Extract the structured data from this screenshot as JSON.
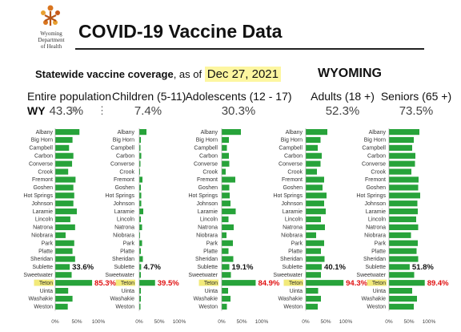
{
  "header": {
    "logo_text": [
      "Wyoming",
      "Department",
      "of Health"
    ],
    "title": "COVID-19 Vaccine Data",
    "coverage_label": "Statewide vaccine coverage",
    "coverage_suffix": ", as of",
    "as_of_date": "Dec 27, 2021",
    "state": "WYOMING"
  },
  "entire": {
    "label": "Entire population",
    "state": "WY",
    "value": "43.3%"
  },
  "groups": [
    {
      "label": "Children (5-11)",
      "value": "7.4%"
    },
    {
      "label": "Adolescents (12 - 17)",
      "value": "30.3%"
    },
    {
      "label": "Adults (18 +)",
      "value": "52.3%"
    },
    {
      "label": "Seniors (65 +)",
      "value": "73.5%"
    }
  ],
  "colors": {
    "bar": "#27a33a",
    "highlight_bar": "#27a33a",
    "label_dark": "#111111",
    "label_red": "#e01010",
    "teton_hl": "#f2ea7a",
    "axis": "#999999"
  },
  "chart_data": [
    {
      "type": "bar",
      "orientation": "horizontal",
      "xlim": [
        0,
        100
      ],
      "xticks": [
        "0%",
        "50%",
        "100%"
      ],
      "categories": [
        "Albany",
        "Big Horn",
        "Campbell",
        "Carbon",
        "Converse",
        "Crook",
        "Fremont",
        "Goshen",
        "Hot Springs",
        "Johnson",
        "Laramie",
        "Lincoln",
        "Natrona",
        "Niobrara",
        "Park",
        "Platte",
        "Sheridan",
        "Sublette",
        "Sweetwater",
        "Teton",
        "Uinta",
        "Washakie",
        "Weston"
      ],
      "values": [
        56,
        40,
        32,
        42,
        39,
        30,
        47,
        42,
        44,
        42,
        50,
        35,
        46,
        24,
        44,
        40,
        46,
        33.6,
        38,
        85.3,
        30,
        40,
        29
      ],
      "labels": [
        {
          "category": "Sublette",
          "text": "33.6%",
          "color": "dark"
        },
        {
          "category": "Teton",
          "text": "85.3%",
          "color": "red"
        }
      ]
    },
    {
      "type": "bar",
      "orientation": "horizontal",
      "xlim": [
        0,
        100
      ],
      "xticks": [
        "0%",
        "50%",
        "100%"
      ],
      "categories": [
        "Albany",
        "Big Horn",
        "Campbell",
        "Carbon",
        "Converse",
        "Crook",
        "Fremont",
        "Goshen",
        "Hot Springs",
        "Johnson",
        "Laramie",
        "Lincoln",
        "Natrona",
        "Niobrara",
        "Park",
        "Platte",
        "Sheridan",
        "Sublette",
        "Sweetwater",
        "Teton",
        "Uinta",
        "Washakie",
        "Weston"
      ],
      "values": [
        18,
        4,
        3,
        5,
        3,
        2,
        8,
        4,
        5,
        5,
        10,
        4,
        7,
        2,
        7,
        4,
        9,
        4.7,
        4,
        39.5,
        4,
        4,
        3
      ],
      "labels": [
        {
          "category": "Sublette",
          "text": "4.7%",
          "color": "dark"
        },
        {
          "category": "Teton",
          "text": "39.5%",
          "color": "red"
        }
      ]
    },
    {
      "type": "bar",
      "orientation": "horizontal",
      "xlim": [
        0,
        100
      ],
      "xticks": [
        "0%",
        "50%",
        "100%"
      ],
      "categories": [
        "Albany",
        "Big Horn",
        "Campbell",
        "Carbon",
        "Converse",
        "Crook",
        "Fremont",
        "Goshen",
        "Hot Springs",
        "Johnson",
        "Laramie",
        "Lincoln",
        "Natrona",
        "Niobrara",
        "Park",
        "Platte",
        "Sheridan",
        "Sublette",
        "Sweetwater",
        "Teton",
        "Uinta",
        "Washakie",
        "Weston"
      ],
      "values": [
        48,
        18,
        13,
        18,
        19,
        10,
        34,
        19,
        20,
        22,
        35,
        17,
        30,
        12,
        28,
        17,
        29,
        19.1,
        23,
        84.9,
        16,
        22,
        13
      ],
      "labels": [
        {
          "category": "Sublette",
          "text": "19.1%",
          "color": "dark"
        },
        {
          "category": "Teton",
          "text": "84.9%",
          "color": "red"
        }
      ]
    },
    {
      "type": "bar",
      "orientation": "horizontal",
      "xlim": [
        0,
        100
      ],
      "xticks": [
        "0%",
        "50%",
        "100%"
      ],
      "categories": [
        "Albany",
        "Big Horn",
        "Campbell",
        "Carbon",
        "Converse",
        "Crook",
        "Fremont",
        "Goshen",
        "Hot Springs",
        "Johnson",
        "Laramie",
        "Lincoln",
        "Natrona",
        "Niobrara",
        "Park",
        "Platte",
        "Sheridan",
        "Sublette",
        "Sweetwater",
        "Teton",
        "Uinta",
        "Washakie",
        "Weston"
      ],
      "values": [
        54,
        37,
        30,
        40,
        37,
        28,
        46,
        42,
        52,
        46,
        50,
        38,
        48,
        26,
        46,
        38,
        47,
        40.1,
        38,
        94.3,
        31,
        38,
        30
      ],
      "labels": [
        {
          "category": "Sublette",
          "text": "40.1%",
          "color": "dark"
        },
        {
          "category": "Teton",
          "text": "94.3%",
          "color": "red"
        }
      ]
    },
    {
      "type": "bar",
      "orientation": "horizontal",
      "xlim": [
        0,
        100
      ],
      "xticks": [
        "0%",
        "50%",
        "100%"
      ],
      "categories": [
        "Albany",
        "Big Horn",
        "Campbell",
        "Carbon",
        "Converse",
        "Crook",
        "Fremont",
        "Goshen",
        "Hot Springs",
        "Johnson",
        "Laramie",
        "Lincoln",
        "Natrona",
        "Niobrara",
        "Park",
        "Platte",
        "Sheridan",
        "Sublette",
        "Sweetwater",
        "Teton",
        "Uinta",
        "Washakie",
        "Weston"
      ],
      "values": [
        76,
        62,
        58,
        66,
        65,
        56,
        74,
        73,
        78,
        71,
        72,
        68,
        73,
        55,
        72,
        69,
        73,
        51.8,
        63,
        89.4,
        58,
        70,
        62
      ],
      "labels": [
        {
          "category": "Sublette",
          "text": "51.8%",
          "color": "dark"
        },
        {
          "category": "Teton",
          "text": "89.4%",
          "color": "red"
        }
      ]
    }
  ]
}
